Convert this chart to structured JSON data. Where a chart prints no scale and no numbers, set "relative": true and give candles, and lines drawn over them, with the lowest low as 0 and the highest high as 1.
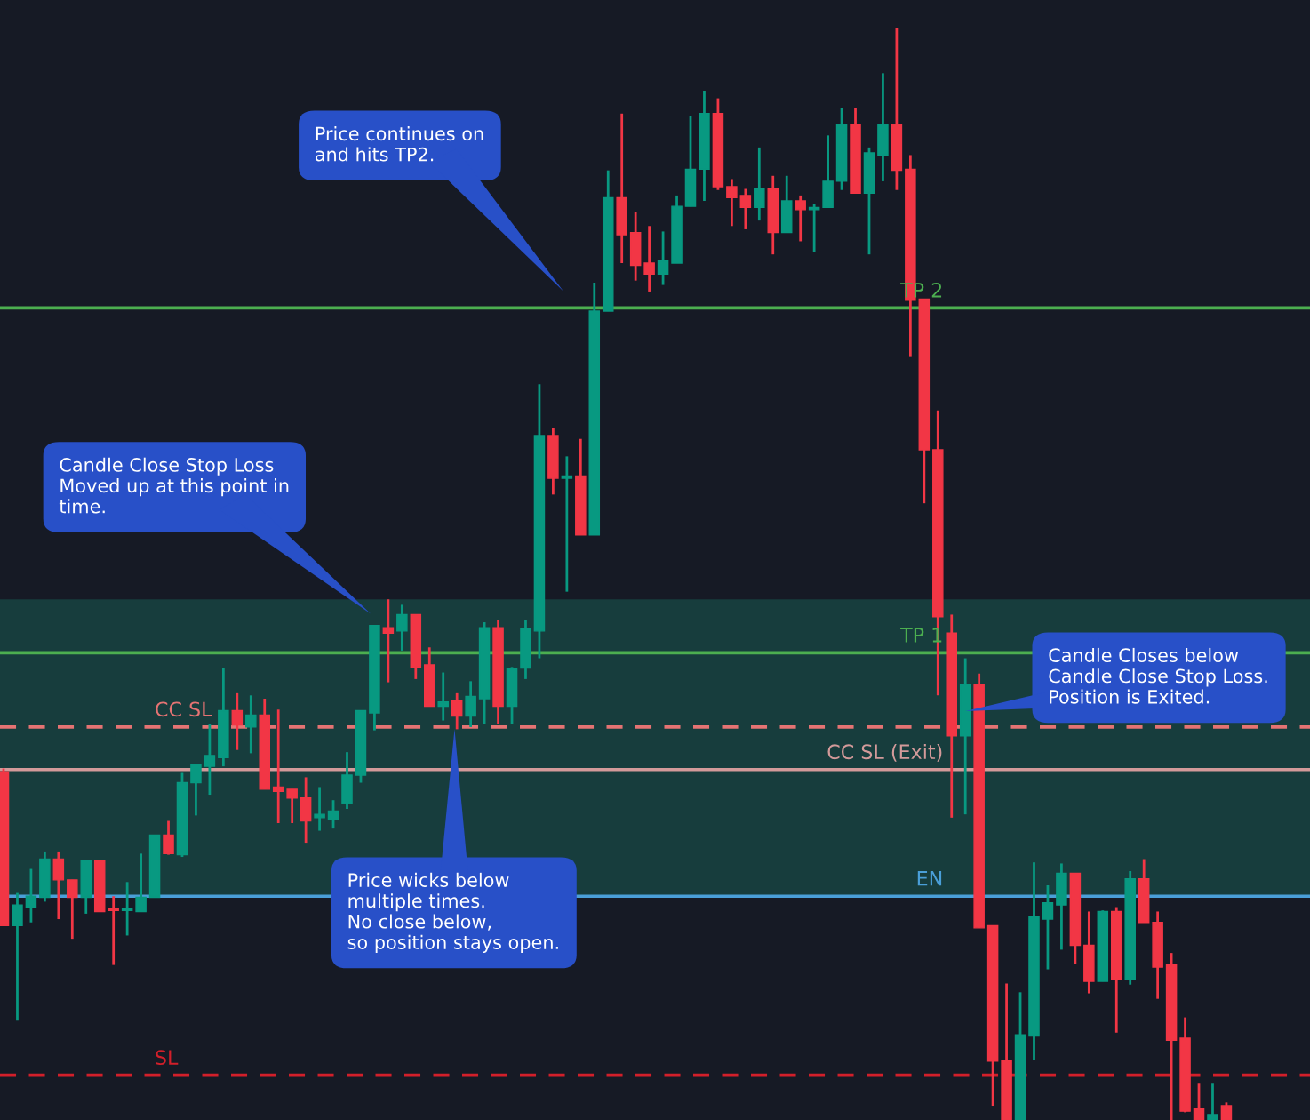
{
  "chart_data": {
    "type": "candlestick",
    "relative": true,
    "categories": [
      null,
      null,
      null,
      null,
      null,
      null,
      null,
      null,
      null,
      null,
      null,
      null,
      null,
      null,
      null,
      null,
      null,
      null,
      null,
      null,
      null,
      null,
      null,
      null,
      null,
      null,
      null,
      null,
      null,
      null,
      null,
      null,
      null,
      null,
      null,
      null,
      null,
      null,
      null,
      null,
      null,
      null,
      null,
      null,
      null,
      null,
      null,
      null,
      null,
      null,
      null,
      null,
      null,
      null,
      null,
      null,
      null,
      null,
      null,
      null,
      null,
      null,
      null,
      null,
      null,
      null,
      null,
      null,
      null,
      null,
      null,
      null,
      null,
      null,
      null,
      null,
      null,
      null,
      null,
      null,
      null,
      null,
      null,
      null,
      null,
      null,
      null,
      null,
      null,
      null
    ],
    "ohlc": [
      [
        0.319,
        0.322,
        0.178,
        0.178
      ],
      [
        0.178,
        0.208,
        0.091,
        0.197
      ],
      [
        0.195,
        0.23,
        0.181,
        0.205
      ],
      [
        0.204,
        0.246,
        0.2,
        0.239
      ],
      [
        0.239,
        0.246,
        0.184,
        0.22
      ],
      [
        0.22,
        0.22,
        0.166,
        0.204
      ],
      [
        0.204,
        0.238,
        0.189,
        0.238
      ],
      [
        0.238,
        0.238,
        0.191,
        0.191
      ],
      [
        0.194,
        0.205,
        0.142,
        0.192
      ],
      [
        0.192,
        0.218,
        0.169,
        0.194
      ],
      [
        0.191,
        0.244,
        0.191,
        0.204
      ],
      [
        0.204,
        0.261,
        0.204,
        0.261
      ],
      [
        0.261,
        0.274,
        0.243,
        0.244
      ],
      [
        0.243,
        0.318,
        0.241,
        0.309
      ],
      [
        0.309,
        0.326,
        0.279,
        0.326
      ],
      [
        0.324,
        0.363,
        0.298,
        0.334
      ],
      [
        0.332,
        0.414,
        0.324,
        0.375
      ],
      [
        0.375,
        0.391,
        0.339,
        0.362
      ],
      [
        0.36,
        0.389,
        0.336,
        0.371
      ],
      [
        0.371,
        0.386,
        0.303,
        0.303
      ],
      [
        0.305,
        0.376,
        0.272,
        0.301
      ],
      [
        0.303,
        0.303,
        0.272,
        0.295
      ],
      [
        0.295,
        0.314,
        0.254,
        0.274
      ],
      [
        0.277,
        0.305,
        0.265,
        0.28
      ],
      [
        0.275,
        0.293,
        0.267,
        0.283
      ],
      [
        0.29,
        0.337,
        0.285,
        0.316
      ],
      [
        0.316,
        0.375,
        0.309,
        0.375
      ],
      [
        0.373,
        0.453,
        0.357,
        0.453
      ],
      [
        0.451,
        0.477,
        0.401,
        0.446
      ],
      [
        0.448,
        0.472,
        0.43,
        0.463
      ],
      [
        0.463,
        0.463,
        0.404,
        0.415
      ],
      [
        0.417,
        0.433,
        0.379,
        0.379
      ],
      [
        0.379,
        0.41,
        0.366,
        0.383
      ],
      [
        0.384,
        0.391,
        0.358,
        0.37
      ],
      [
        0.37,
        0.402,
        0.36,
        0.388
      ],
      [
        0.386,
        0.456,
        0.363,
        0.451
      ],
      [
        0.451,
        0.458,
        0.363,
        0.379
      ],
      [
        0.379,
        0.415,
        0.363,
        0.414
      ],
      [
        0.414,
        0.458,
        0.404,
        0.45
      ],
      [
        0.448,
        0.674,
        0.423,
        0.627
      ],
      [
        0.627,
        0.634,
        0.573,
        0.588
      ],
      [
        0.588,
        0.608,
        0.484,
        0.59
      ],
      [
        0.59,
        0.624,
        0.536,
        0.536
      ],
      [
        0.536,
        0.767,
        0.536,
        0.741
      ],
      [
        0.741,
        0.87,
        0.741,
        0.845
      ],
      [
        0.845,
        0.922,
        0.785,
        0.811
      ],
      [
        0.813,
        0.832,
        0.769,
        0.783
      ],
      [
        0.785,
        0.819,
        0.759,
        0.775
      ],
      [
        0.775,
        0.814,
        0.765,
        0.787
      ],
      [
        0.785,
        0.847,
        0.785,
        0.837
      ],
      [
        0.837,
        0.92,
        0.837,
        0.871
      ],
      [
        0.871,
        0.943,
        0.842,
        0.922
      ],
      [
        0.922,
        0.936,
        0.852,
        0.855
      ],
      [
        0.855,
        0.862,
        0.819,
        0.845
      ],
      [
        0.847,
        0.853,
        0.816,
        0.836
      ],
      [
        0.836,
        0.891,
        0.824,
        0.853
      ],
      [
        0.853,
        0.865,
        0.793,
        0.813
      ],
      [
        0.813,
        0.865,
        0.813,
        0.842
      ],
      [
        0.842,
        0.847,
        0.805,
        0.834
      ],
      [
        0.834,
        0.839,
        0.795,
        0.836
      ],
      [
        0.836,
        0.902,
        0.836,
        0.86
      ],
      [
        0.86,
        0.927,
        0.852,
        0.912
      ],
      [
        0.912,
        0.927,
        0.849,
        0.849
      ],
      [
        0.849,
        0.891,
        0.793,
        0.886
      ],
      [
        0.884,
        0.959,
        0.86,
        0.912
      ],
      [
        0.912,
        1,
        0.852,
        0.87
      ],
      [
        0.871,
        0.884,
        0.699,
        0.751
      ],
      [
        0.752,
        0.752,
        0.565,
        0.614
      ],
      [
        0.614,
        0.65,
        0.389,
        0.461
      ],
      [
        0.446,
        0.463,
        0.277,
        0.352
      ],
      [
        0.352,
        0.423,
        0.28,
        0.399
      ],
      [
        0.399,
        0.409,
        0.176,
        0.176
      ],
      [
        0.178,
        0.178,
        0.013,
        0.054
      ],
      [
        0.054,
        0.125,
        0,
        0
      ],
      [
        0,
        0.117,
        0,
        0.078
      ],
      [
        0.077,
        0.236,
        0.055,
        0.186
      ],
      [
        0.184,
        0.215,
        0.138,
        0.199
      ],
      [
        0.197,
        0.235,
        0.156,
        0.226
      ],
      [
        0.226,
        0.226,
        0.143,
        0.16
      ],
      [
        0.16,
        0.191,
        0.116,
        0.127
      ],
      [
        0.127,
        0.192,
        0.127,
        0.191
      ],
      [
        0.191,
        0.195,
        0.08,
        0.129
      ],
      [
        0.129,
        0.228,
        0.124,
        0.221
      ],
      [
        0.221,
        0.239,
        0.181,
        0.181
      ],
      [
        0.181,
        0.191,
        0.111,
        0.14
      ],
      [
        0.142,
        0.153,
        0,
        0.073
      ],
      [
        0.075,
        0.094,
        0.007,
        0.008
      ],
      [
        0.01,
        0.034,
        0,
        0
      ],
      [
        0,
        0.034,
        0,
        0.005
      ],
      [
        0.013,
        0.016,
        0,
        0
      ]
    ],
    "colors": [
      "#f23645",
      "#089981",
      "#089981",
      "#089981",
      "#f23645",
      "#f23645",
      "#089981",
      "#f23645",
      "#f23645",
      "#089981",
      "#089981",
      "#089981",
      "#f23645",
      "#089981",
      "#089981",
      "#089981",
      "#089981",
      "#f23645",
      "#089981",
      "#f23645",
      "#f23645",
      "#f23645",
      "#f23645",
      "#089981",
      "#089981",
      "#089981",
      "#089981",
      "#089981",
      "#f23645",
      "#089981",
      "#f23645",
      "#f23645",
      "#089981",
      "#f23645",
      "#089981",
      "#089981",
      "#f23645",
      "#089981",
      "#089981",
      "#089981",
      "#f23645",
      "#089981",
      "#f23645",
      "#089981",
      "#089981",
      "#f23645",
      "#f23645",
      "#f23645",
      "#089981",
      "#089981",
      "#089981",
      "#089981",
      "#f23645",
      "#f23645",
      "#f23645",
      "#089981",
      "#f23645",
      "#089981",
      "#f23645",
      "#089981",
      "#089981",
      "#089981",
      "#f23645",
      "#089981",
      "#089981",
      "#f23645",
      "#f23645",
      "#f23645",
      "#f23645",
      "#f23645",
      "#089981",
      "#f23645",
      "#f23645",
      "#f23645",
      "#089981",
      "#089981",
      "#089981",
      "#089981",
      "#f23645",
      "#f23645",
      "#089981",
      "#f23645",
      "#089981",
      "#f23645",
      "#f23645",
      "#f23645",
      "#f23645",
      "#f23645",
      "#089981",
      "#f23645"
    ],
    "bands": [
      {
        "axis": "y",
        "from": 0.205,
        "to": 0.477,
        "color": "#173d3d"
      }
    ],
    "ref_lines": [
      {
        "axis": "y",
        "value": 0.744,
        "label": "TP 2",
        "color": "#4caf50",
        "line_style": "solid"
      },
      {
        "axis": "y",
        "value": 0.428,
        "label": "TP 1",
        "color": "#4caf50",
        "line_style": "solid"
      },
      {
        "axis": "y",
        "value": 0.36,
        "label": "CC SL",
        "color": "#e57373",
        "line_style": "dashed"
      },
      {
        "axis": "y",
        "value": 0.321,
        "label": "CC SL (Exit)",
        "color": "#d39a9a",
        "line_style": "solid"
      },
      {
        "axis": "y",
        "value": 0.205,
        "label": "EN",
        "color": "#4a9fd8",
        "line_style": "solid"
      },
      {
        "axis": "y",
        "value": 0.041,
        "label": "SL",
        "color": "#d21f2a",
        "line_style": "dashed"
      }
    ],
    "annotations": [
      "Price continues on\nand hits TP2.",
      "Candle Close Stop Loss\nMoved up at this point in\ntime.",
      "Candle Closes below\nCandle Close Stop Loss.\nPosition is Exited.",
      "Price wicks below\nmultiple times.\nNo close below,\nso position stays open."
    ]
  }
}
